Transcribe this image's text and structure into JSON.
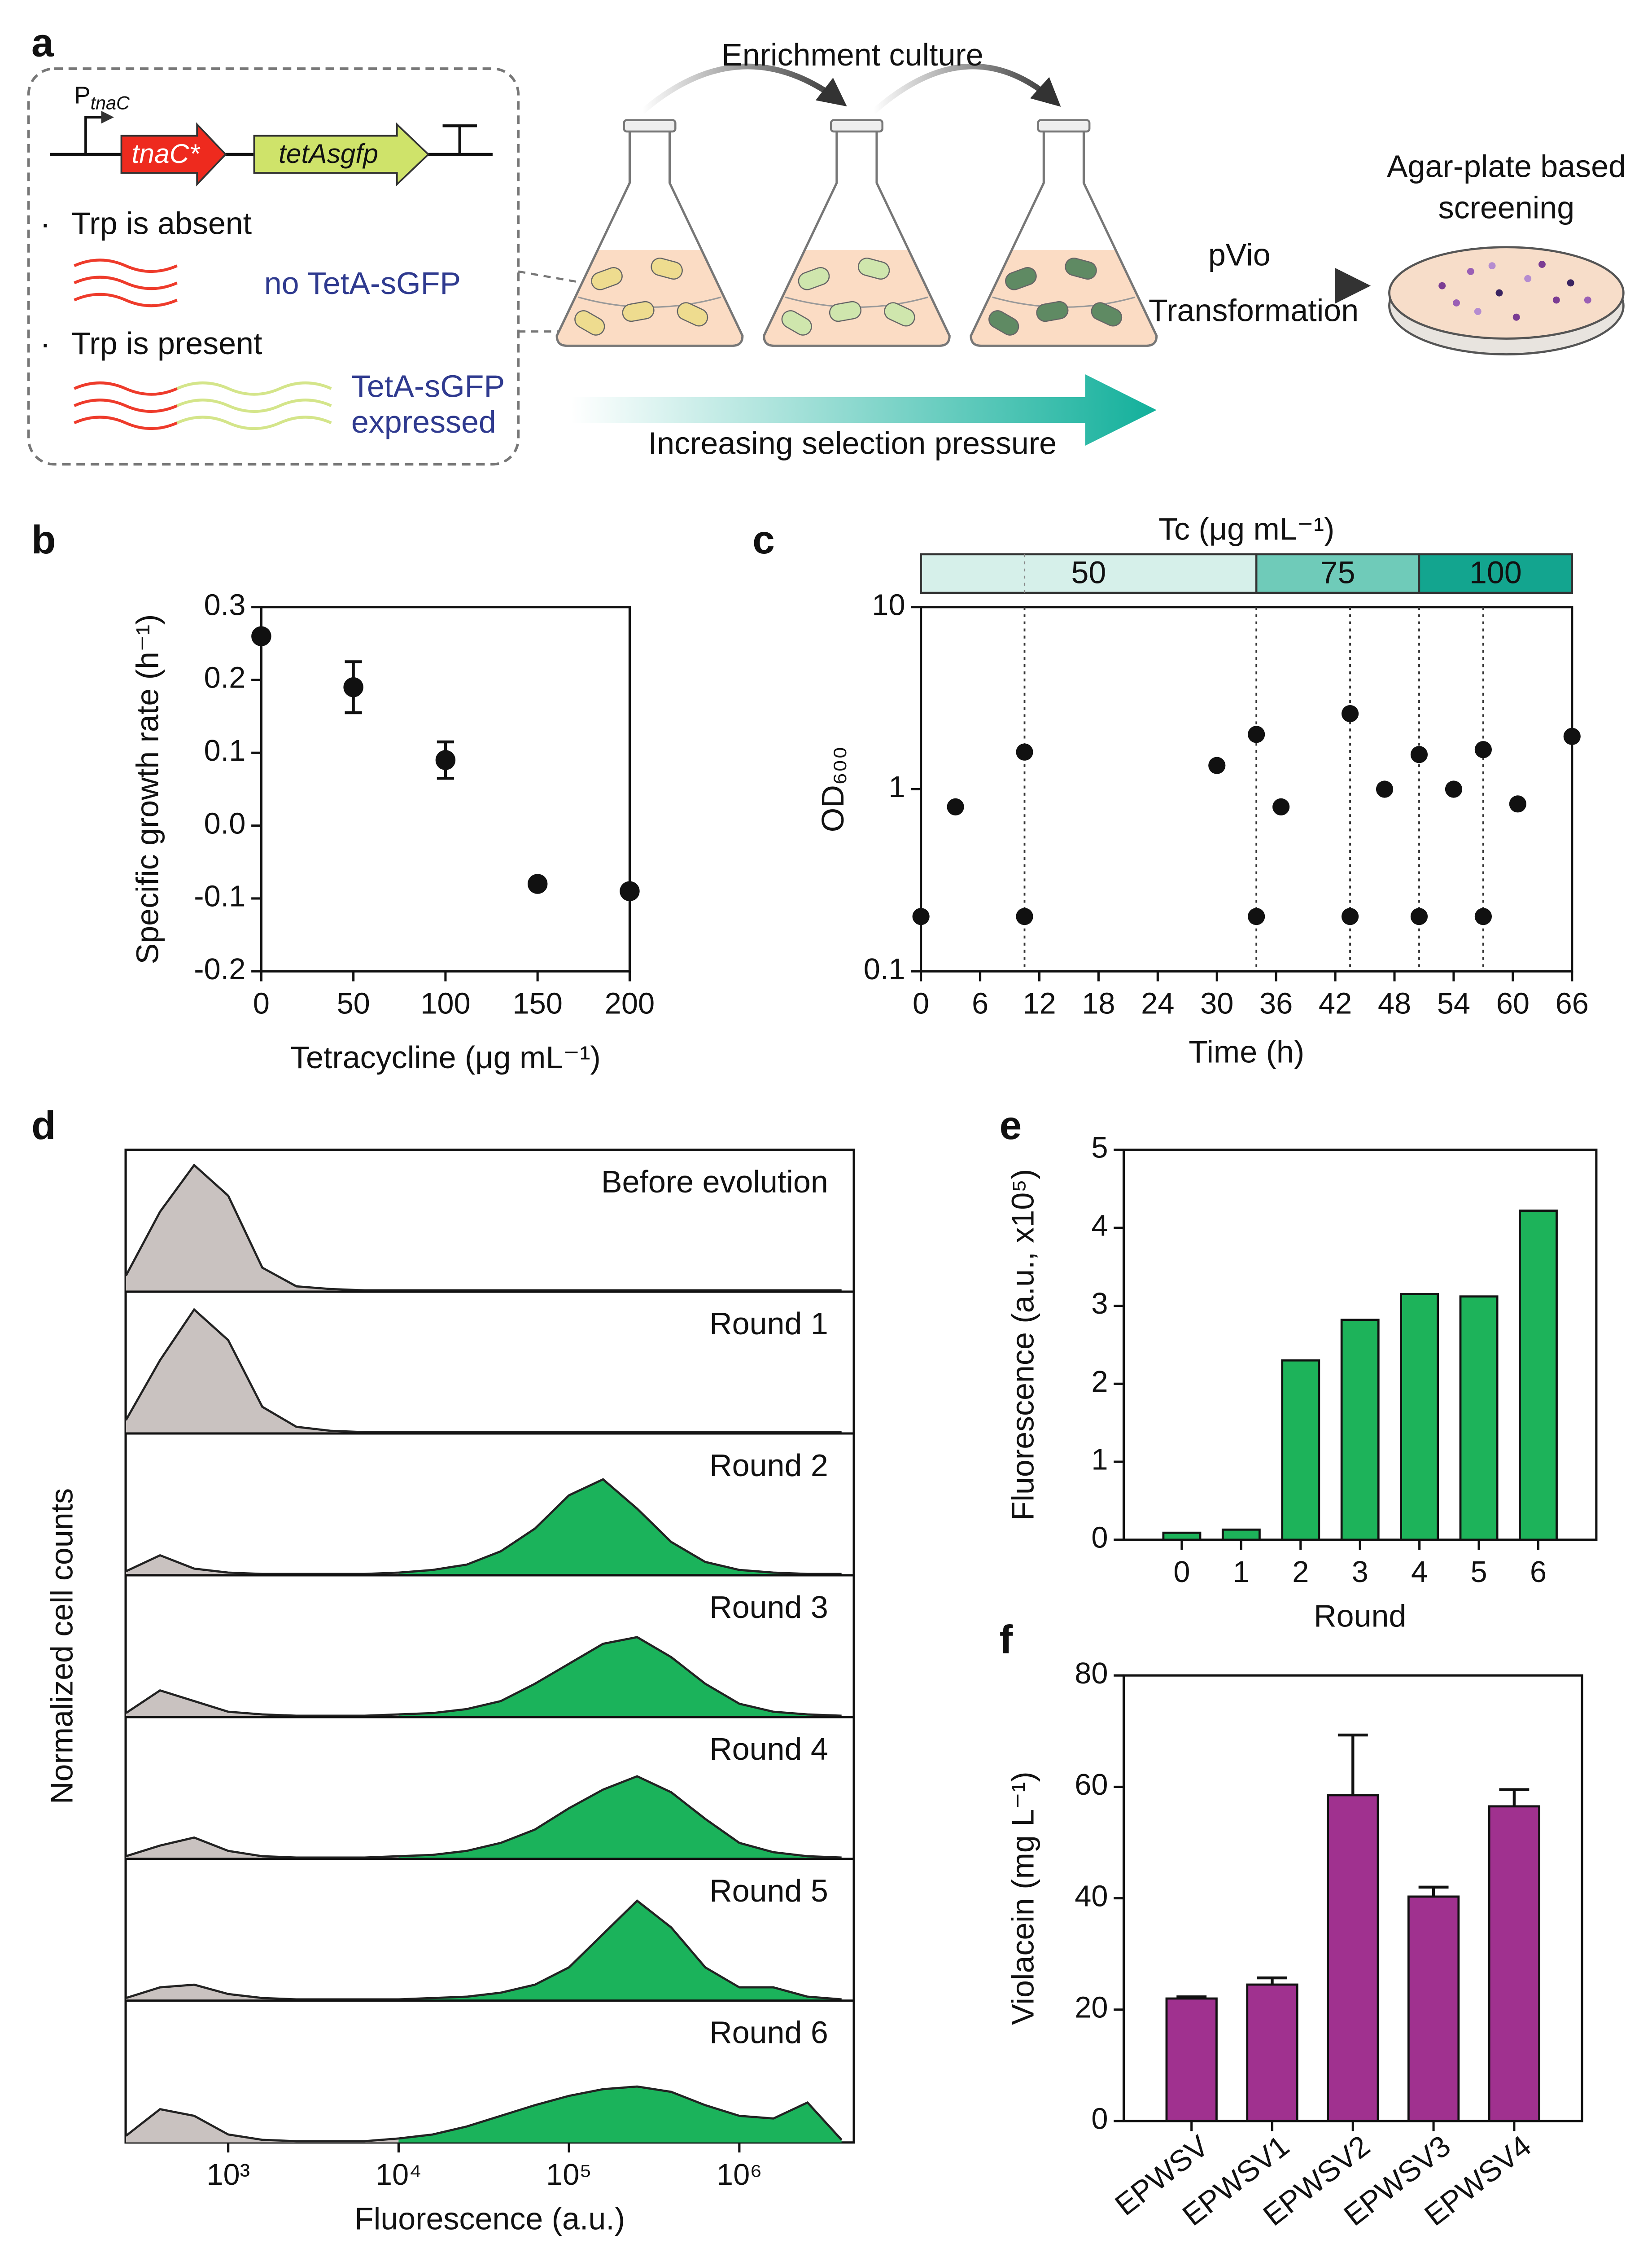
{
  "panel_labels": [
    "a",
    "b",
    "c",
    "d",
    "e",
    "f"
  ],
  "diagram": {
    "promoter": "P",
    "promoter_sub": "tnaC",
    "gene_1": "tnaC*",
    "gene_2": "tetAsgfp",
    "bullet": "·",
    "condition_1": "Trp is absent",
    "result_1": "no TetA-sGFP",
    "condition_2": "Trp is present",
    "result_2": [
      "TetA-sGFP",
      "expressed"
    ],
    "step_1": "Enrichment culture",
    "plasmid": "pVio",
    "step_2": "Transformation",
    "step_3": [
      "Agar-plate based",
      "screening"
    ],
    "gradient": "Increasing selection pressure"
  },
  "chart_data": [
    {
      "type": "scatter",
      "xlabel": "Tetracycline (μg mL⁻¹)",
      "ylabel": "Specific growth rate (h⁻¹)",
      "x": [
        0,
        50,
        100,
        150,
        200
      ],
      "values": [
        0.26,
        0.19,
        0.09,
        -0.08,
        -0.09
      ],
      "errors": [
        null,
        0.035,
        0.025,
        null,
        null
      ],
      "color": "#111111",
      "xlim": [
        0,
        200
      ],
      "xticks": [
        0,
        50,
        100,
        150,
        200
      ],
      "ylim": [
        -0.2,
        0.3
      ],
      "yticks": [
        -0.2,
        -0.1,
        {
          "value": 0,
          "label": "0.0"
        },
        0.1,
        0.2,
        0.3
      ]
    },
    {
      "type": "line",
      "xlabel": "Time (h)",
      "ylabel": "OD₆₀₀",
      "yscale": "log",
      "color": "#111111",
      "x": [
        0,
        3.5,
        10.5,
        10.5,
        30,
        34,
        34,
        36.5,
        43.5,
        43.5,
        47,
        50.5,
        50.5,
        54,
        57,
        57,
        60.5,
        66
      ],
      "values": [
        0.2,
        0.8,
        1.6,
        0.2,
        1.35,
        2.0,
        0.2,
        0.8,
        2.6,
        0.2,
        1.0,
        1.55,
        0.2,
        1.0,
        1.65,
        0.2,
        0.83,
        1.95
      ],
      "xlim": [
        0,
        66
      ],
      "xticks": [
        0,
        6,
        12,
        18,
        24,
        30,
        36,
        42,
        48,
        54,
        60,
        66
      ],
      "ylim": [
        0.1,
        10
      ],
      "yticks": [
        0.1,
        1,
        10
      ],
      "transfers": [
        10.5,
        34,
        43.5,
        50.5,
        57
      ],
      "band_title": "Tc (μg mL⁻¹)",
      "bands": [
        {
          "value": 50,
          "start": 0,
          "end": 34,
          "color": "#d6f0ea"
        },
        {
          "value": 75,
          "start": 34,
          "end": 50.5,
          "color": "#6fcbb9"
        },
        {
          "value": 100,
          "start": 50.5,
          "end": 66,
          "color": "#13a58f"
        }
      ]
    },
    {
      "type": "density",
      "xlabel": "Fluorescence (a.u.)",
      "ylabel": "Normalized cell counts",
      "xscale": "log",
      "xlim": [
        250,
        4700000
      ],
      "xticks": [
        {
          "value": 1000,
          "label": "10³"
        },
        {
          "value": 10000,
          "label": "10⁴"
        },
        {
          "value": 100000,
          "label": "10⁵"
        },
        {
          "value": 1000000,
          "label": "10⁶"
        }
      ],
      "gate": 10000,
      "low_color": "#c9c2c0",
      "high_color": "#1bb35b",
      "x": [
        251,
        398,
        631,
        1000,
        1585,
        2512,
        3981,
        6310,
        10000,
        15849,
        25119,
        39811,
        63096,
        100000,
        158489,
        251189,
        398107,
        630957,
        1000000,
        1584893,
        2511886,
        3981072
      ],
      "series": [
        {
          "name": "Before evolution",
          "values": [
            0.12,
            0.6,
            0.95,
            0.72,
            0.18,
            0.04,
            0.02,
            0.01,
            0.01,
            0.01,
            0.01,
            0.01,
            0.01,
            0.01,
            0.01,
            0.01,
            0.01,
            0.01,
            0.01,
            0.01,
            0.01,
            0.01
          ]
        },
        {
          "name": "Round 1",
          "values": [
            0.1,
            0.55,
            0.93,
            0.7,
            0.2,
            0.05,
            0.02,
            0.01,
            0.01,
            0.01,
            0.01,
            0.01,
            0.01,
            0.01,
            0.01,
            0.01,
            0.01,
            0.01,
            0.01,
            0.01,
            0.01,
            0.01
          ]
        },
        {
          "name": "Round 2",
          "values": [
            0.03,
            0.15,
            0.05,
            0.02,
            0.01,
            0.01,
            0.01,
            0.01,
            0.02,
            0.04,
            0.08,
            0.18,
            0.35,
            0.6,
            0.72,
            0.5,
            0.25,
            0.1,
            0.04,
            0.02,
            0.01,
            0.01
          ]
        },
        {
          "name": "Round 3",
          "values": [
            0.03,
            0.2,
            0.12,
            0.04,
            0.02,
            0.01,
            0.01,
            0.01,
            0.02,
            0.03,
            0.06,
            0.12,
            0.25,
            0.4,
            0.55,
            0.6,
            0.45,
            0.25,
            0.1,
            0.04,
            0.02,
            0.01
          ]
        },
        {
          "name": "Round 4",
          "values": [
            0.02,
            0.1,
            0.16,
            0.06,
            0.02,
            0.01,
            0.01,
            0.01,
            0.02,
            0.03,
            0.06,
            0.12,
            0.22,
            0.38,
            0.52,
            0.62,
            0.5,
            0.3,
            0.12,
            0.05,
            0.02,
            0.01
          ]
        },
        {
          "name": "Round 5",
          "values": [
            0.02,
            0.1,
            0.12,
            0.05,
            0.02,
            0.01,
            0.01,
            0.01,
            0.01,
            0.02,
            0.03,
            0.06,
            0.12,
            0.25,
            0.5,
            0.75,
            0.55,
            0.25,
            0.1,
            0.1,
            0.03,
            0.01
          ]
        },
        {
          "name": "Round 6",
          "values": [
            0.05,
            0.25,
            0.2,
            0.06,
            0.02,
            0.01,
            0.01,
            0.01,
            0.03,
            0.06,
            0.12,
            0.2,
            0.28,
            0.35,
            0.4,
            0.42,
            0.38,
            0.28,
            0.2,
            0.18,
            0.3,
            0.02
          ]
        }
      ]
    },
    {
      "type": "bar",
      "xlabel": "Round",
      "ylabel": "Fluorescence (a.u., x10⁵)",
      "color": "#1db35a",
      "categories": [
        "0",
        "1",
        "2",
        "3",
        "4",
        "5",
        "6"
      ],
      "values": [
        0.09,
        0.13,
        2.3,
        2.82,
        3.15,
        3.12,
        4.22
      ],
      "ylim": [
        0,
        5
      ],
      "yticks": [
        0,
        1,
        2,
        3,
        4,
        5
      ]
    },
    {
      "type": "bar",
      "ylabel": "Violacein (mg L⁻¹)",
      "color": "#a0318f",
      "rotate_labels": true,
      "categories": [
        "EPWSV",
        "EPWSV1",
        "EPWSV2",
        "EPWSV3",
        "EPWSV4"
      ],
      "values": [
        22,
        24.5,
        58.5,
        40.3,
        56.5
      ],
      "errors": [
        0.3,
        1.2,
        10.8,
        1.7,
        3
      ],
      "ylim": [
        0,
        80
      ],
      "yticks": [
        0,
        20,
        40,
        60,
        80
      ]
    }
  ]
}
